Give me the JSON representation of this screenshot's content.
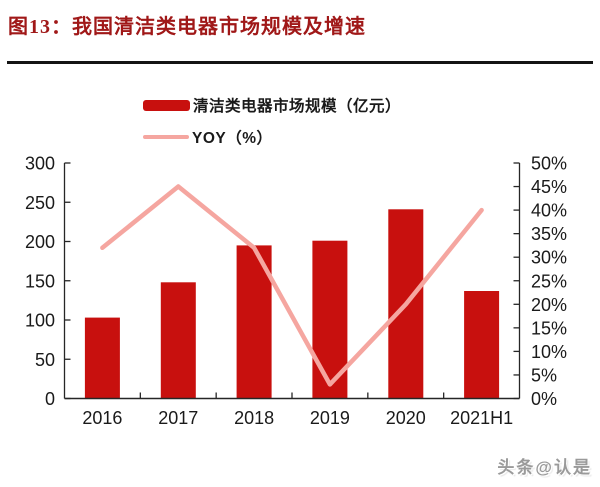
{
  "title": "图13：我国清洁类电器市场规模及增速",
  "watermark": "头条@认是",
  "colors": {
    "bar": "#C8100E",
    "line": "#F5A6A0",
    "title_red": "#A01818",
    "axis": "#262626",
    "tick_label": "#1a1a1a"
  },
  "legend": {
    "items": [
      {
        "label": "清洁类电器市场规模（亿元）",
        "type": "bar"
      },
      {
        "label": "YOY（%）",
        "type": "line"
      }
    ]
  },
  "chart_data": {
    "type": "bar",
    "subtype": "bar+line-dual-axis",
    "title": "我国清洁类电器市场规模及增速",
    "categories": [
      "2016",
      "2017",
      "2018",
      "2019",
      "2020",
      "2021H1"
    ],
    "series": [
      {
        "name": "清洁类电器市场规模（亿元）",
        "type": "bar",
        "axis": "left",
        "values": [
          103,
          148,
          195,
          201,
          241,
          137
        ]
      },
      {
        "name": "YOY（%）",
        "type": "line",
        "axis": "right",
        "values": [
          32,
          45,
          32,
          3,
          20,
          40
        ]
      }
    ],
    "left_axis": {
      "min": 0,
      "max": 300,
      "step": 50,
      "tick_labels": [
        "0",
        "50",
        "100",
        "150",
        "200",
        "250",
        "300"
      ]
    },
    "right_axis": {
      "min": 0,
      "max": 50,
      "step": 5,
      "tick_labels": [
        "0%",
        "5%",
        "10%",
        "15%",
        "20%",
        "25%",
        "30%",
        "35%",
        "40%",
        "45%",
        "50%"
      ]
    },
    "grid": false,
    "legend_position": "top-center"
  }
}
